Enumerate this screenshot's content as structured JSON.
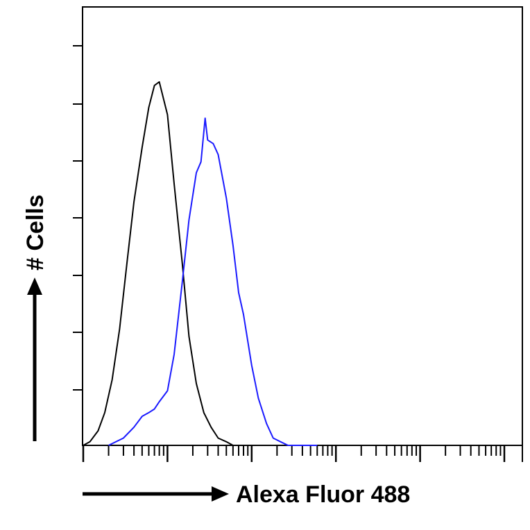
{
  "chart_data": {
    "type": "line",
    "title": "",
    "xlabel": "Alexa Fluor 488",
    "ylabel": "# Cells",
    "x_scale": "log",
    "xlim": [
      1,
      100000
    ],
    "ylim": [
      0,
      1
    ],
    "grid": false,
    "legend": "none",
    "tick_labels": "none",
    "series": [
      {
        "color": "#000000",
        "x": [
          1,
          1.2,
          1.5,
          1.8,
          2.2,
          2.7,
          3.3,
          4,
          5,
          6,
          7,
          8,
          10,
          12,
          15,
          18,
          22,
          27,
          33,
          40,
          50,
          60
        ],
        "values": [
          0,
          0.01,
          0.04,
          0.09,
          0.18,
          0.32,
          0.5,
          0.67,
          0.82,
          0.93,
          0.99,
          1.0,
          0.91,
          0.72,
          0.5,
          0.3,
          0.17,
          0.09,
          0.05,
          0.02,
          0.01,
          0
        ]
      },
      {
        "color": "#1a1aff",
        "x": [
          2,
          3,
          4,
          5,
          6,
          7,
          8,
          10,
          12,
          15,
          18,
          22,
          25,
          28,
          30,
          35,
          40,
          50,
          60,
          70,
          80,
          100,
          120,
          150,
          180,
          220,
          270,
          330,
          400,
          500,
          600
        ],
        "values": [
          0,
          0.02,
          0.05,
          0.08,
          0.09,
          0.1,
          0.12,
          0.15,
          0.25,
          0.45,
          0.62,
          0.75,
          0.78,
          0.9,
          0.84,
          0.83,
          0.8,
          0.68,
          0.55,
          0.42,
          0.36,
          0.22,
          0.13,
          0.06,
          0.02,
          0.01,
          0,
          0,
          0,
          0,
          0
        ]
      }
    ]
  }
}
